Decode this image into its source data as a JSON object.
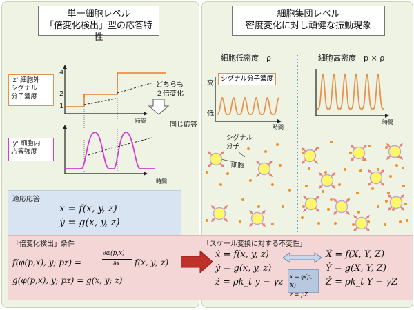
{
  "left": {
    "title_line1": "単一細胞レベル",
    "title_line2": "「倍変化検出」型の応答特性",
    "z_label": "'z' 細胞外\nシグナル\n分子濃度",
    "y_label": "'y' 細胞内\n応答強度",
    "ticks": [
      "4",
      "2",
      "1"
    ],
    "time1": "時間",
    "time2": "時間",
    "annot1": "どちらも\n２倍変化",
    "annot2": "同じ応答",
    "adapt_title": "適応応答",
    "eq1": "ẋ = f(x, y, z)",
    "eq2": "ẏ = g(x, y, z)",
    "cond_title": "「倍変化検出」条件",
    "cond_eq1_a": "f(φ(p,x), y; pz) =",
    "cond_eq1_frac_num": "∂φ(p,x)",
    "cond_eq1_frac_den": "∂x",
    "cond_eq1_b": "f(x, y; z)",
    "cond_eq2": "g(φ(p,x), y; pz) = g(x, y; z)"
  },
  "right": {
    "title_line1": "細胞集団レベル",
    "title_line2": "密度変化に対し頑健な振動現象",
    "low_density": "細胞低密度　ρ",
    "high_density": "細胞高密度　p × ρ",
    "high_label": "高",
    "low_label": "低",
    "signal_conc": "シグナル分子濃度",
    "time_low": "時間",
    "time_high": "時間",
    "signal_mol": "シグナル\n分子",
    "cell": "細胞",
    "scale_title": "「スケール変換に対する不変性」",
    "eqs_left": [
      "ẋ = f(x, y, z)",
      "ẏ = g(x, y, z)",
      "ż = ρk_t y − γz"
    ],
    "eqs_right": [
      "Ẋ = f(X, Y, Z)",
      "Ẏ = g(X, Y, Z)",
      "Ż = ρk_t Y − γZ"
    ],
    "mini1": "x = φ(p, X)",
    "mini2": "z = pZ"
  },
  "colors": {
    "orange": "#e8914a",
    "magenta": "#d63bd6",
    "red_arrow": "#c0302a",
    "blue_dash": "#4a7fd0",
    "dot": "#f0902a",
    "cell_fill": "#fff66a"
  }
}
